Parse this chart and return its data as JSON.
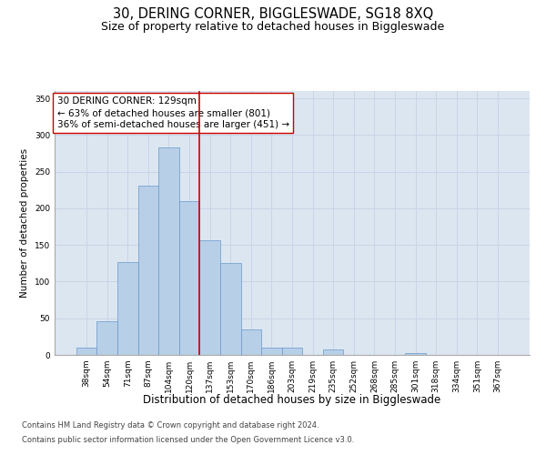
{
  "title": "30, DERING CORNER, BIGGLESWADE, SG18 8XQ",
  "subtitle": "Size of property relative to detached houses in Biggleswade",
  "xlabel": "Distribution of detached houses by size in Biggleswade",
  "ylabel": "Number of detached properties",
  "bar_labels": [
    "38sqm",
    "54sqm",
    "71sqm",
    "87sqm",
    "104sqm",
    "120sqm",
    "137sqm",
    "153sqm",
    "170sqm",
    "186sqm",
    "203sqm",
    "219sqm",
    "235sqm",
    "252sqm",
    "268sqm",
    "285sqm",
    "301sqm",
    "318sqm",
    "334sqm",
    "351sqm",
    "367sqm"
  ],
  "bar_values": [
    10,
    46,
    127,
    231,
    283,
    210,
    157,
    125,
    35,
    10,
    10,
    0,
    8,
    0,
    0,
    0,
    2,
    0,
    0,
    0,
    0
  ],
  "bar_color": "#b8cfe8",
  "bar_edge_color": "#6699cc",
  "vline_x": 5.5,
  "vline_color": "#cc0000",
  "annotation_line1": "30 DERING CORNER: 129sqm",
  "annotation_line2": "← 63% of detached houses are smaller (801)",
  "annotation_line3": "36% of semi-detached houses are larger (451) →",
  "annotation_box_facecolor": "#ffffff",
  "annotation_box_edgecolor": "#cc0000",
  "ylim": [
    0,
    360
  ],
  "yticks": [
    0,
    50,
    100,
    150,
    200,
    250,
    300,
    350
  ],
  "grid_color": "#c8d4e8",
  "bg_color": "#dce6f0",
  "footnote_line1": "Contains HM Land Registry data © Crown copyright and database right 2024.",
  "footnote_line2": "Contains public sector information licensed under the Open Government Licence v3.0.",
  "title_fontsize": 10.5,
  "subtitle_fontsize": 9,
  "xlabel_fontsize": 8.5,
  "ylabel_fontsize": 7.5,
  "tick_fontsize": 6.5,
  "annot_fontsize": 7.5,
  "footnote_fontsize": 6
}
